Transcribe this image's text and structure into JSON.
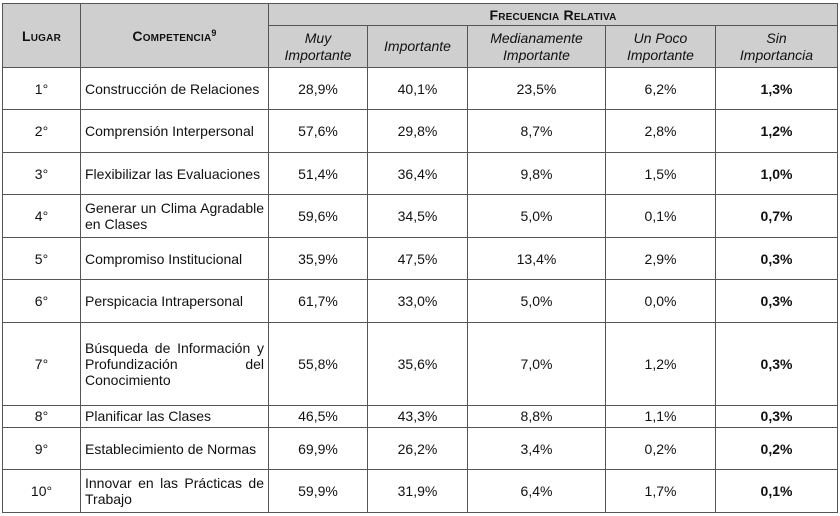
{
  "header": {
    "lugar": "Lugar",
    "competencia": "Competencia",
    "footnote_marker": "9",
    "group": "Frecuencia Relativa",
    "columns": [
      {
        "line1": "Muy",
        "line2": "Importante"
      },
      {
        "line1": "Importante",
        "line2": ""
      },
      {
        "line1": "Medianamente",
        "line2": "Importante"
      },
      {
        "line1": "Un Poco",
        "line2": "Importante"
      },
      {
        "line1": "Sin",
        "line2": "Importancia"
      }
    ]
  },
  "rows": [
    {
      "rank": "1°",
      "competencia": "Construcción de Relaciones",
      "values": [
        "28,9%",
        "40,1%",
        "23,5%",
        "6,2%",
        "1,3%"
      ]
    },
    {
      "rank": "2°",
      "competencia": "Comprensión Interpersonal",
      "values": [
        "57,6%",
        "29,8%",
        "8,7%",
        "2,8%",
        "1,2%"
      ]
    },
    {
      "rank": "3°",
      "competencia": "Flexibilizar las Evaluaciones",
      "values": [
        "51,4%",
        "36,4%",
        "9,8%",
        "1,5%",
        "1,0%"
      ]
    },
    {
      "rank": "4°",
      "competencia": "Generar un Clima Agradable en Clases",
      "values": [
        "59,6%",
        "34,5%",
        "5,0%",
        "0,1%",
        "0,7%"
      ]
    },
    {
      "rank": "5°",
      "competencia": "Compromiso Institucional",
      "values": [
        "35,9%",
        "47,5%",
        "13,4%",
        "2,9%",
        "0,3%"
      ]
    },
    {
      "rank": "6°",
      "competencia": "Perspicacia Intrapersonal",
      "values": [
        "61,7%",
        "33,0%",
        "5,0%",
        "0,0%",
        "0,3%"
      ]
    },
    {
      "rank": "7°",
      "competencia": "Búsqueda de Información y Profundización del Conocimiento",
      "values": [
        "55,8%",
        "35,6%",
        "7,0%",
        "1,2%",
        "0,3%"
      ]
    },
    {
      "rank": "8°",
      "competencia": "Planificar las Clases",
      "values": [
        "46,5%",
        "43,3%",
        "8,8%",
        "1,1%",
        "0,3%"
      ]
    },
    {
      "rank": "9°",
      "competencia": "Establecimiento de Normas",
      "values": [
        "69,9%",
        "26,2%",
        "3,4%",
        "0,2%",
        "0,2%"
      ]
    },
    {
      "rank": "10°",
      "competencia": "Innovar en las Prácticas de Trabajo",
      "values": [
        "59,9%",
        "31,9%",
        "6,4%",
        "1,7%",
        "0,1%"
      ]
    }
  ]
}
